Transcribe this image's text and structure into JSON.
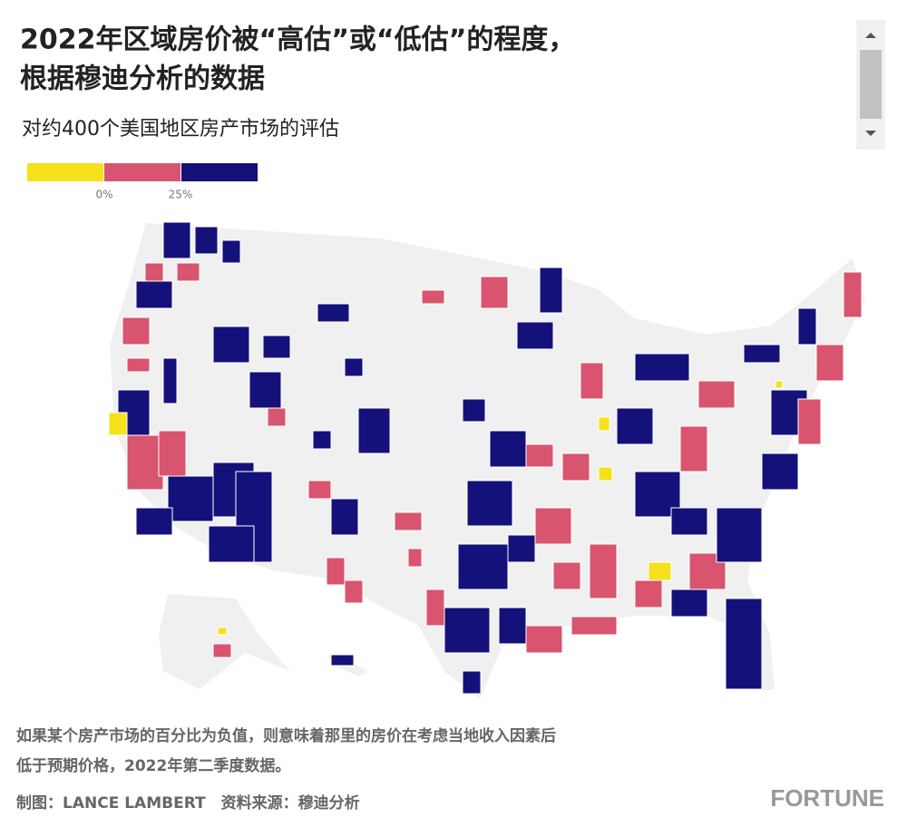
{
  "header": {
    "title": [
      "2022年区域房价被“高估”或“低估”的程度，",
      "根据穆迪分析的数据"
    ],
    "subtitle": "对约400个美国地区房产市场的评估"
  },
  "legend": {
    "colors": [
      "#f5e11b",
      "#d9546e",
      "#14117a"
    ],
    "ticks": [
      "0%",
      "25%"
    ]
  },
  "footer": {
    "note": [
      "如果某个房产市场的百分比为负值，则意味着那里的房价在考虑当地收入因素后",
      "低于预期价格，2022年第二季度数据。"
    ],
    "credit": "制图：LANCE LAMBERT　资料来源：穆迪分析",
    "logo": "FORTUNE"
  }
}
